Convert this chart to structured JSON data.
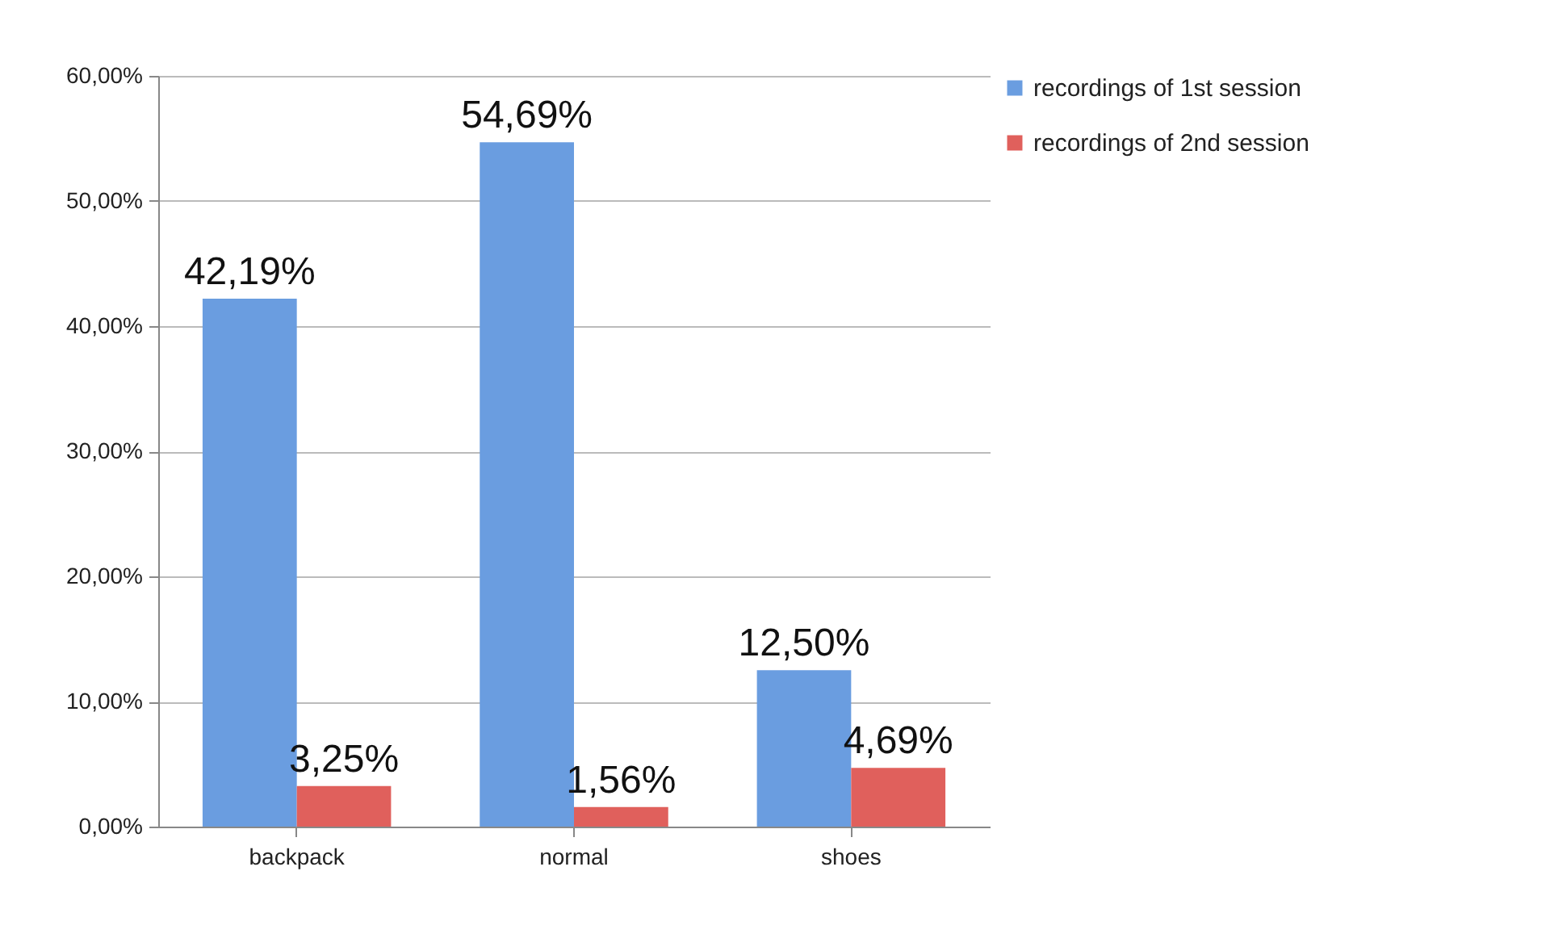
{
  "chart_data": {
    "type": "bar",
    "categories": [
      "backpack",
      "normal",
      "shoes"
    ],
    "series": [
      {
        "name": "recordings of 1st session",
        "color": "#6a9de0",
        "values": [
          42.19,
          54.69,
          12.5
        ],
        "value_labels": [
          "42,19%",
          "54,69%",
          "12,50%"
        ]
      },
      {
        "name": "recordings of 2nd session",
        "color": "#e0605c",
        "values": [
          3.25,
          1.56,
          4.69
        ],
        "value_labels": [
          "3,25%",
          "1,56%",
          "4,69%"
        ]
      }
    ],
    "ylim": [
      0,
      60
    ],
    "yticks": [
      {
        "value": 0,
        "label": "0,00%"
      },
      {
        "value": 10,
        "label": "10,00%"
      },
      {
        "value": 20,
        "label": "20,00%"
      },
      {
        "value": 30,
        "label": "30,00%"
      },
      {
        "value": 40,
        "label": "40,00%"
      },
      {
        "value": 50,
        "label": "50,00%"
      },
      {
        "value": 60,
        "label": "60,00%"
      }
    ],
    "grid": "y",
    "legend": "right"
  }
}
